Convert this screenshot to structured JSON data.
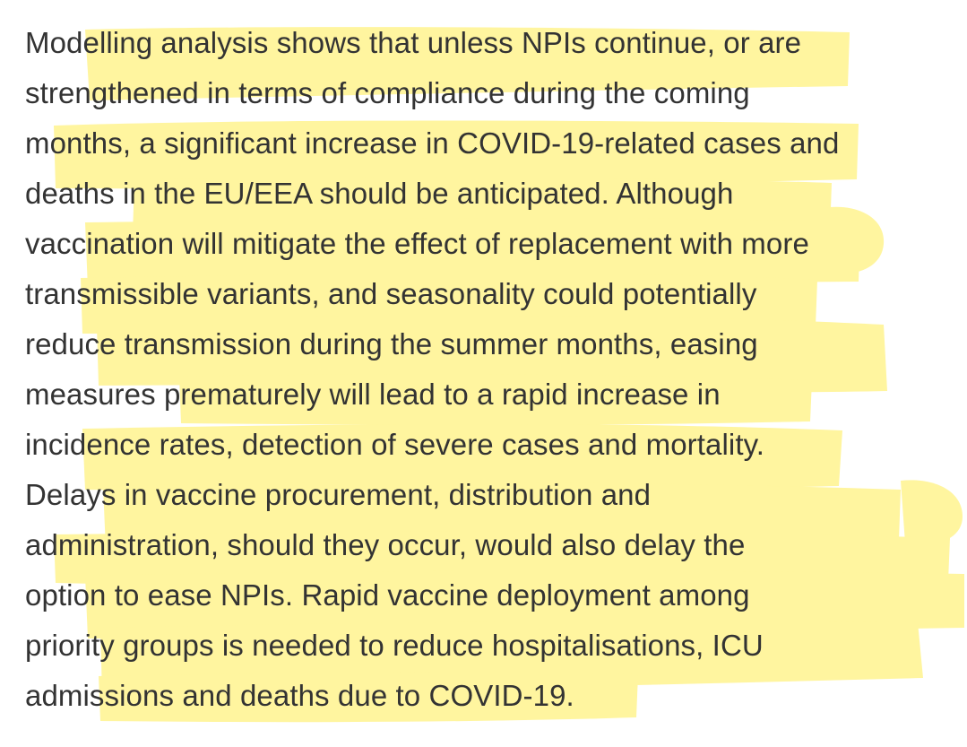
{
  "document": {
    "lines": [
      "Modelling analysis shows that unless NPIs continue, or are",
      "strengthened in terms of compliance during the coming",
      "months, a significant increase in COVID-19-related cases and",
      "deaths in the EU/EEA should be anticipated. Although",
      "vaccination will mitigate the effect of replacement with more",
      "transmissible variants, and seasonality could potentially",
      "reduce transmission during the summer months, easing",
      "measures prematurely will lead to a rapid increase in",
      "incidence rates, detection of severe cases and mortality.",
      "Delays in vaccine procurement, distribution and",
      "administration, should they occur, would also delay the",
      "option to ease NPIs. Rapid vaccine deployment among",
      "priority groups is needed to reduce hospitalisations, ICU",
      "admissions and deaths due to COVID-19."
    ]
  },
  "colors": {
    "background": "#ffffff",
    "text": "#333333",
    "highlight": "#fff38a"
  }
}
